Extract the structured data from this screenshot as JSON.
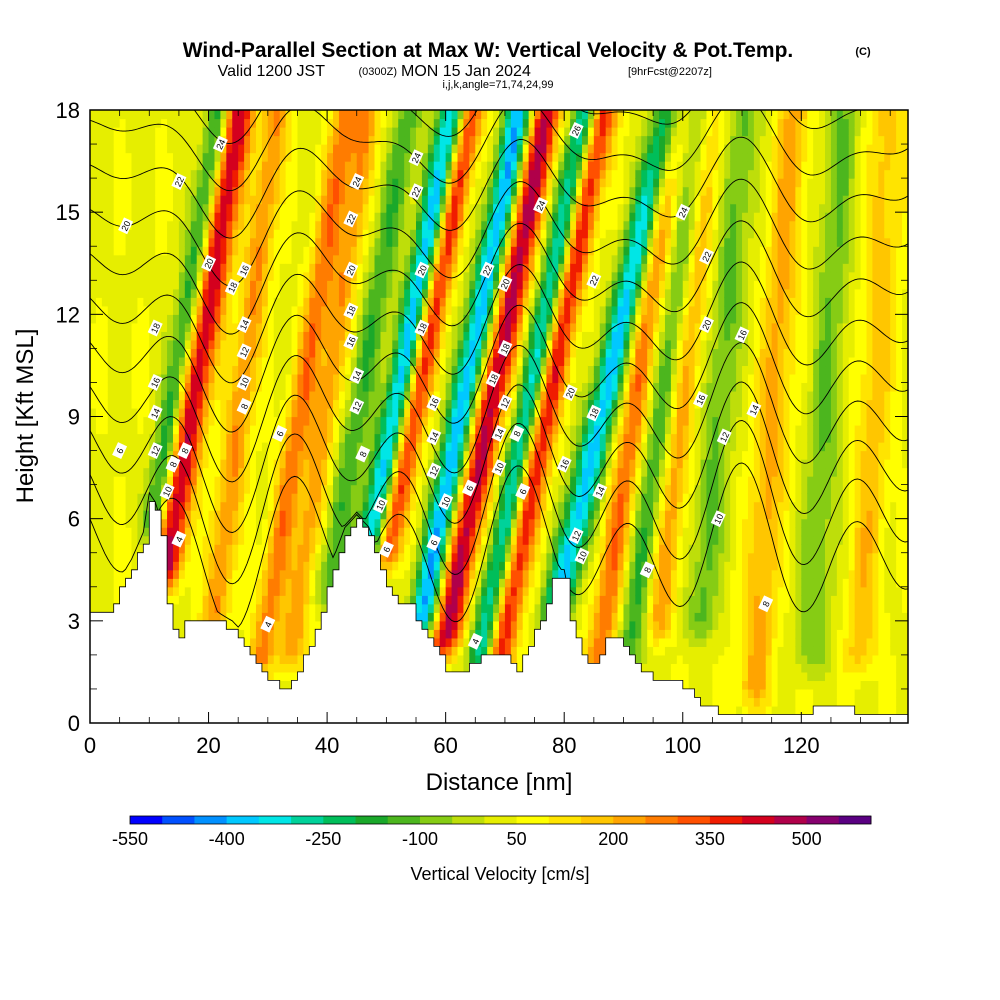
{
  "title": {
    "main": "Wind-Parallel Section at Max W: Vertical Velocity & Pot.Temp.",
    "copyright": "(C)",
    "valid_prefix": "Valid 1200 JST",
    "valid_utc": "(0300Z)",
    "valid_date": "MON 15 Jan 2024",
    "forecast": "[9hrFcst@2207z]",
    "indices": "i,j,k,angle=71,74,24,99"
  },
  "chart_data": {
    "type": "heatmap",
    "xlabel": "Distance [nm]",
    "ylabel": "Height [Kft MSL]",
    "xlim": [
      0,
      138
    ],
    "ylim": [
      0,
      18
    ],
    "x_ticks": [
      "0",
      "20",
      "40",
      "60",
      "80",
      "100",
      "120"
    ],
    "y_ticks": [
      "0",
      "3",
      "6",
      "9",
      "12",
      "15",
      "18"
    ],
    "colorbar": {
      "title": "Vertical Velocity [cm/s]",
      "tick_labels": [
        "-550",
        "-400",
        "-250",
        "-100",
        "50",
        "200",
        "350",
        "500"
      ],
      "levels": [
        -550,
        -500,
        -450,
        -400,
        -350,
        -300,
        -250,
        -200,
        -150,
        -100,
        -50,
        0,
        50,
        100,
        150,
        200,
        250,
        300,
        350,
        400,
        450,
        500,
        550
      ],
      "colors": [
        "#0000ff",
        "#0050ff",
        "#0090ff",
        "#00c8ff",
        "#00e6e6",
        "#00d29a",
        "#00be5a",
        "#1aa82a",
        "#4cb61e",
        "#86cc14",
        "#bede0a",
        "#e6ee00",
        "#ffff00",
        "#ffe400",
        "#ffc600",
        "#ffa400",
        "#ff7c00",
        "#ff5000",
        "#f01c00",
        "#d4001e",
        "#b0004a",
        "#86006e",
        "#5a0082"
      ]
    },
    "vertical_velocity_bands": [
      {
        "x": 13,
        "tilt": 0.9,
        "w": 2.6,
        "amp": 420,
        "y0": 4.5,
        "y1": 18
      },
      {
        "x": 11,
        "tilt": 0.9,
        "w": 2.0,
        "amp": -260,
        "y0": 6,
        "y1": 18
      },
      {
        "x": 21,
        "tilt": 0.7,
        "w": 2.2,
        "amp": 220,
        "y0": 3,
        "y1": 18
      },
      {
        "x": 29,
        "tilt": 0.9,
        "w": 2.2,
        "amp": 240,
        "y0": 2,
        "y1": 18
      },
      {
        "x": 34,
        "tilt": 0.8,
        "w": 2.2,
        "amp": 200,
        "y0": 2,
        "y1": 18
      },
      {
        "x": 40,
        "tilt": 1.0,
        "w": 2.4,
        "amp": -180,
        "y0": 4,
        "y1": 18
      },
      {
        "x": 47,
        "tilt": 1.1,
        "w": 2.4,
        "amp": -440,
        "y0": 5,
        "y1": 18
      },
      {
        "x": 50,
        "tilt": 1.1,
        "w": 2.2,
        "amp": 380,
        "y0": 5,
        "y1": 18
      },
      {
        "x": 56,
        "tilt": 1.1,
        "w": 2.4,
        "amp": -450,
        "y0": 3,
        "y1": 18
      },
      {
        "x": 60,
        "tilt": 1.1,
        "w": 2.6,
        "amp": 440,
        "y0": 2.5,
        "y1": 18
      },
      {
        "x": 66,
        "tilt": 1.1,
        "w": 2.2,
        "amp": -380,
        "y0": 2,
        "y1": 18
      },
      {
        "x": 69,
        "tilt": 1.1,
        "w": 2.4,
        "amp": 380,
        "y0": 2,
        "y1": 18
      },
      {
        "x": 79,
        "tilt": 1.3,
        "w": 2.6,
        "amp": -420,
        "y0": 3.5,
        "y1": 18
      },
      {
        "x": 86,
        "tilt": 0.8,
        "w": 2.4,
        "amp": 250,
        "y0": 2,
        "y1": 18
      },
      {
        "x": 91,
        "tilt": 0.8,
        "w": 2.4,
        "amp": -200,
        "y0": 2,
        "y1": 18
      },
      {
        "x": 96,
        "tilt": 0.6,
        "w": 2.4,
        "amp": 200,
        "y0": 3,
        "y1": 18
      },
      {
        "x": 103,
        "tilt": 0.5,
        "w": 2.6,
        "amp": -160,
        "y0": 3,
        "y1": 18
      },
      {
        "x": 112,
        "tilt": 0.4,
        "w": 2.8,
        "amp": 180,
        "y0": 1,
        "y1": 18
      },
      {
        "x": 122,
        "tilt": 0.3,
        "w": 3.0,
        "amp": -140,
        "y0": 2,
        "y1": 18
      },
      {
        "x": 130,
        "tilt": 0.3,
        "w": 3.0,
        "amp": 140,
        "y0": 2,
        "y1": 18
      }
    ],
    "terrain": [
      [
        0,
        3.2
      ],
      [
        3,
        3.3
      ],
      [
        5,
        3.9
      ],
      [
        7,
        4.5
      ],
      [
        9,
        5.3
      ],
      [
        10,
        6.5
      ],
      [
        11,
        6.2
      ],
      [
        12,
        5.5
      ],
      [
        13,
        3.5
      ],
      [
        14,
        2.7
      ],
      [
        15,
        2.6
      ],
      [
        16,
        3.0
      ],
      [
        19,
        3.0
      ],
      [
        22,
        2.9
      ],
      [
        24,
        2.7
      ],
      [
        26,
        2.3
      ],
      [
        28,
        1.8
      ],
      [
        30,
        1.3
      ],
      [
        33,
        1.0
      ],
      [
        35,
        1.5
      ],
      [
        37,
        2.3
      ],
      [
        39,
        3.3
      ],
      [
        41,
        4.5
      ],
      [
        43,
        5.5
      ],
      [
        45,
        5.9
      ],
      [
        47,
        5.5
      ],
      [
        48,
        5.0
      ],
      [
        50,
        4.0
      ],
      [
        52,
        3.6
      ],
      [
        54,
        3.4
      ],
      [
        56,
        2.8
      ],
      [
        58,
        2.2
      ],
      [
        60,
        1.6
      ],
      [
        62,
        1.4
      ],
      [
        64,
        1.7
      ],
      [
        66,
        2.0
      ],
      [
        70,
        2.0
      ],
      [
        72,
        1.5
      ],
      [
        74,
        2.3
      ],
      [
        76,
        3.0
      ],
      [
        78,
        4.2
      ],
      [
        80,
        4.2
      ],
      [
        81,
        3.0
      ],
      [
        82,
        2.6
      ],
      [
        83,
        2.0
      ],
      [
        85,
        1.7
      ],
      [
        87,
        2.5
      ],
      [
        89,
        2.5
      ],
      [
        91,
        2.0
      ],
      [
        93,
        1.6
      ],
      [
        95,
        1.3
      ],
      [
        99,
        1.2
      ],
      [
        102,
        0.8
      ],
      [
        104,
        0.4
      ],
      [
        108,
        0.3
      ],
      [
        116,
        0.3
      ],
      [
        121,
        0.3
      ],
      [
        122,
        0.6
      ],
      [
        128,
        0.6
      ],
      [
        129,
        0.3
      ],
      [
        138,
        0.3
      ]
    ],
    "contour_labels": [
      {
        "x": 5,
        "y": 8.0,
        "label": "6"
      },
      {
        "x": 6,
        "y": 14.6,
        "label": "20"
      },
      {
        "x": 11,
        "y": 11.6,
        "label": "18"
      },
      {
        "x": 11,
        "y": 10.0,
        "label": "16"
      },
      {
        "x": 11,
        "y": 9.1,
        "label": "14"
      },
      {
        "x": 11,
        "y": 8.0,
        "label": "12"
      },
      {
        "x": 13,
        "y": 6.8,
        "label": "10"
      },
      {
        "x": 14,
        "y": 7.6,
        "label": "8"
      },
      {
        "x": 15,
        "y": 5.4,
        "label": "4"
      },
      {
        "x": 16,
        "y": 8.0,
        "label": "8"
      },
      {
        "x": 15,
        "y": 15.9,
        "label": "22"
      },
      {
        "x": 22,
        "y": 17.0,
        "label": "24"
      },
      {
        "x": 20,
        "y": 13.5,
        "label": "20"
      },
      {
        "x": 24,
        "y": 12.8,
        "label": "18"
      },
      {
        "x": 26,
        "y": 13.3,
        "label": "16"
      },
      {
        "x": 26,
        "y": 11.7,
        "label": "14"
      },
      {
        "x": 26,
        "y": 10.9,
        "label": "12"
      },
      {
        "x": 26,
        "y": 10.0,
        "label": "10"
      },
      {
        "x": 26,
        "y": 9.3,
        "label": "8"
      },
      {
        "x": 32,
        "y": 8.5,
        "label": "6"
      },
      {
        "x": 30,
        "y": 2.9,
        "label": "4"
      },
      {
        "x": 45,
        "y": 15.9,
        "label": "24"
      },
      {
        "x": 44,
        "y": 14.8,
        "label": "22"
      },
      {
        "x": 44,
        "y": 13.3,
        "label": "20"
      },
      {
        "x": 44,
        "y": 12.1,
        "label": "18"
      },
      {
        "x": 44,
        "y": 11.2,
        "label": "16"
      },
      {
        "x": 45,
        "y": 10.2,
        "label": "14"
      },
      {
        "x": 45,
        "y": 9.3,
        "label": "12"
      },
      {
        "x": 46,
        "y": 7.9,
        "label": "8"
      },
      {
        "x": 49,
        "y": 6.4,
        "label": "10"
      },
      {
        "x": 50,
        "y": 5.1,
        "label": "6"
      },
      {
        "x": 55,
        "y": 16.6,
        "label": "24"
      },
      {
        "x": 55,
        "y": 15.6,
        "label": "22"
      },
      {
        "x": 56,
        "y": 13.3,
        "label": "20"
      },
      {
        "x": 56,
        "y": 11.6,
        "label": "18"
      },
      {
        "x": 58,
        "y": 9.4,
        "label": "16"
      },
      {
        "x": 58,
        "y": 8.4,
        "label": "14"
      },
      {
        "x": 58,
        "y": 7.4,
        "label": "12"
      },
      {
        "x": 60,
        "y": 6.5,
        "label": "10"
      },
      {
        "x": 58,
        "y": 5.3,
        "label": "6"
      },
      {
        "x": 64,
        "y": 6.9,
        "label": "6"
      },
      {
        "x": 65,
        "y": 2.4,
        "label": "4"
      },
      {
        "x": 67,
        "y": 13.3,
        "label": "22"
      },
      {
        "x": 70,
        "y": 12.9,
        "label": "20"
      },
      {
        "x": 70,
        "y": 11.0,
        "label": "18"
      },
      {
        "x": 68,
        "y": 10.1,
        "label": "18"
      },
      {
        "x": 70,
        "y": 9.4,
        "label": "12"
      },
      {
        "x": 69,
        "y": 8.5,
        "label": "14"
      },
      {
        "x": 69,
        "y": 7.5,
        "label": "10"
      },
      {
        "x": 72,
        "y": 8.5,
        "label": "8"
      },
      {
        "x": 73,
        "y": 6.8,
        "label": "6"
      },
      {
        "x": 76,
        "y": 15.2,
        "label": "24"
      },
      {
        "x": 82,
        "y": 17.4,
        "label": "26"
      },
      {
        "x": 81,
        "y": 9.7,
        "label": "20"
      },
      {
        "x": 80,
        "y": 7.6,
        "label": "16"
      },
      {
        "x": 82,
        "y": 5.5,
        "label": "12"
      },
      {
        "x": 83,
        "y": 4.9,
        "label": "10"
      },
      {
        "x": 85,
        "y": 13.0,
        "label": "22"
      },
      {
        "x": 85,
        "y": 9.1,
        "label": "18"
      },
      {
        "x": 86,
        "y": 6.8,
        "label": "14"
      },
      {
        "x": 94,
        "y": 4.5,
        "label": "8"
      },
      {
        "x": 100,
        "y": 15.0,
        "label": "24"
      },
      {
        "x": 104,
        "y": 13.7,
        "label": "22"
      },
      {
        "x": 104,
        "y": 11.7,
        "label": "20"
      },
      {
        "x": 110,
        "y": 11.4,
        "label": "16"
      },
      {
        "x": 103,
        "y": 9.5,
        "label": "16"
      },
      {
        "x": 112,
        "y": 9.2,
        "label": "14"
      },
      {
        "x": 107,
        "y": 8.4,
        "label": "12"
      },
      {
        "x": 106,
        "y": 6.0,
        "label": "10"
      },
      {
        "x": 114,
        "y": 3.5,
        "label": "8"
      }
    ],
    "theta_lines": [
      4,
      6,
      8,
      10,
      12,
      14,
      16,
      18,
      20,
      22,
      24,
      26
    ]
  }
}
